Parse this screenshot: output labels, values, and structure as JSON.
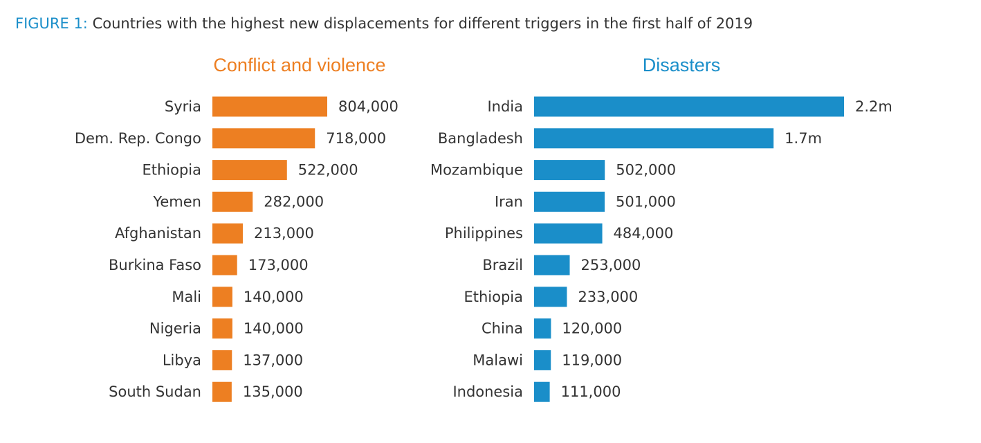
{
  "figure": {
    "label": "FIGURE 1:",
    "caption": " Countries with the highest new displacements for different triggers in the first half of 2019",
    "label_color": "#1a8ec9"
  },
  "chart_data": [
    {
      "type": "bar",
      "orientation": "horizontal",
      "title": "Conflict and violence",
      "color": "#ed7f22",
      "categories": [
        "Syria",
        "Dem. Rep. Congo",
        "Ethiopia",
        "Yemen",
        "Afghanistan",
        "Burkina Faso",
        "Mali",
        "Nigeria",
        "Libya",
        "South Sudan"
      ],
      "values": [
        804000,
        718000,
        522000,
        282000,
        213000,
        173000,
        140000,
        140000,
        137000,
        135000
      ],
      "value_labels": [
        "804,000",
        "718,000",
        "522,000",
        "282,000",
        "213,000",
        "173,000",
        "140,000",
        "140,000",
        "137,000",
        "135,000"
      ],
      "xlabel": "",
      "ylabel": "",
      "grid": false,
      "legend": "none"
    },
    {
      "type": "bar",
      "orientation": "horizontal",
      "title": "Disasters",
      "color": "#1a8ec9",
      "categories": [
        "India",
        "Bangladesh",
        "Mozambique",
        "Iran",
        "Philippines",
        "Brazil",
        "Ethiopia",
        "China",
        "Malawi",
        "Indonesia"
      ],
      "values": [
        2200000,
        1700000,
        502000,
        501000,
        484000,
        253000,
        233000,
        120000,
        119000,
        111000
      ],
      "value_labels": [
        "2.2m",
        "1.7m",
        "502,000",
        "501,000",
        "484,000",
        "253,000",
        "233,000",
        "120,000",
        "119,000",
        "111,000"
      ],
      "xlabel": "",
      "ylabel": "",
      "grid": false,
      "legend": "none"
    }
  ]
}
